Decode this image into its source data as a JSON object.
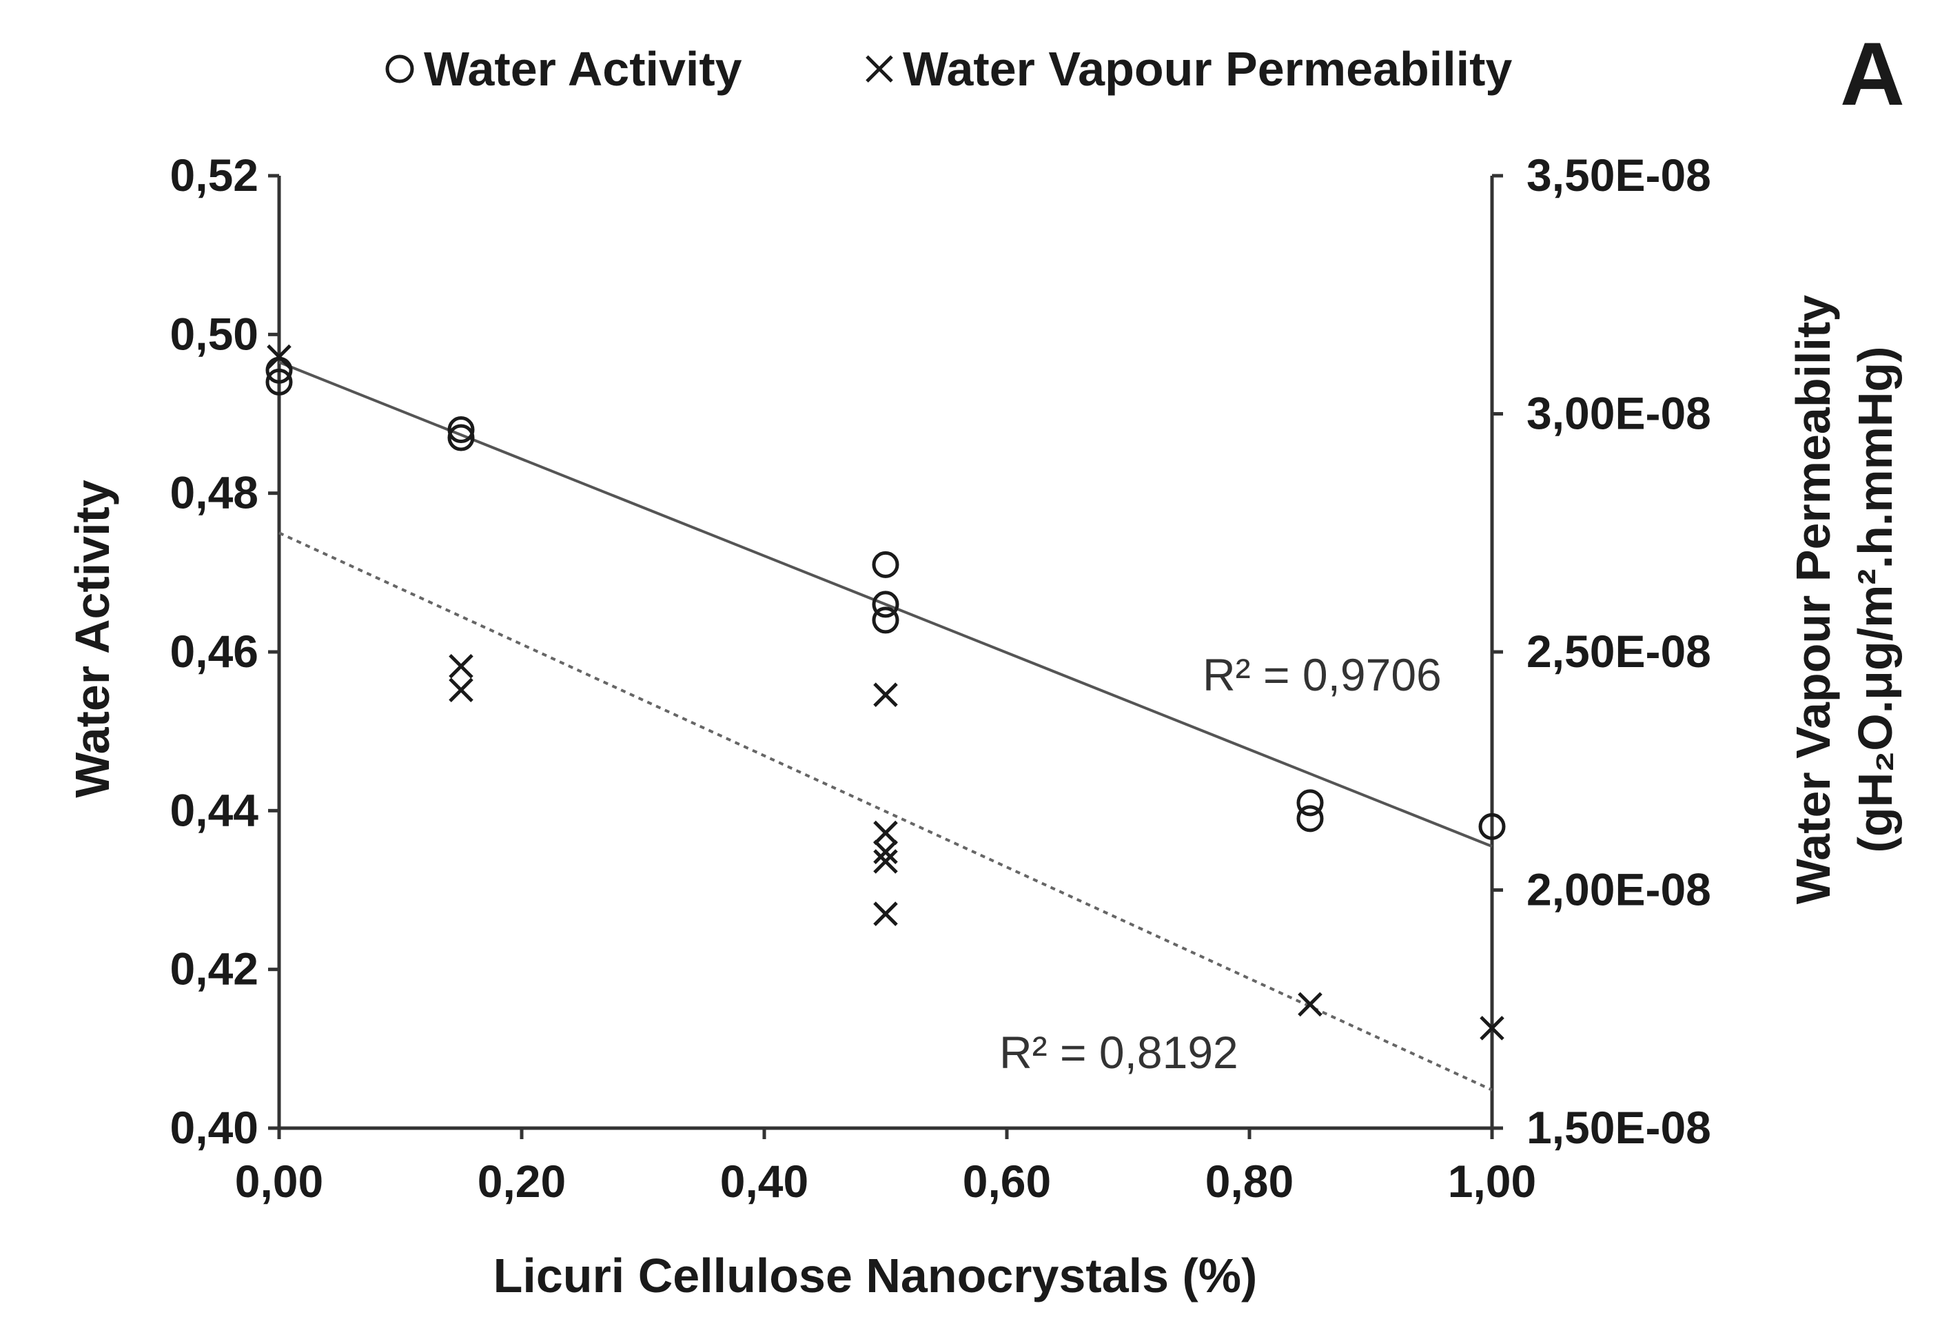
{
  "chart_data": {
    "type": "scatter",
    "panel_label": "A",
    "xlabel": "Licuri Cellulose Nanocrystals (%)",
    "ylabel_left": "Water Activity",
    "ylabel_right_line1": "Water Vapour Permeability",
    "ylabel_right_line2": "(gH₂O.μg/m².h.mmHg)",
    "xlim": [
      0,
      1
    ],
    "ylim_left": [
      0.4,
      0.52
    ],
    "ylim_right": [
      1.5e-08,
      3.5e-08
    ],
    "x_ticks": [
      0,
      0.2,
      0.4,
      0.6,
      0.8,
      1.0
    ],
    "x_tick_labels": [
      "0,00",
      "0,20",
      "0,40",
      "0,60",
      "0,80",
      "1,00"
    ],
    "y_left_ticks": [
      0.4,
      0.42,
      0.44,
      0.46,
      0.48,
      0.5,
      0.52
    ],
    "y_left_tick_labels": [
      "0,40",
      "0,42",
      "0,44",
      "0,46",
      "0,48",
      "0,50",
      "0,52"
    ],
    "y_right_ticks": [
      1.5e-08,
      2e-08,
      2.5e-08,
      3e-08,
      3.5e-08
    ],
    "y_right_tick_labels": [
      "1,50E-08",
      "2,00E-08",
      "2,50E-08",
      "3,00E-08",
      "3,50E-08"
    ],
    "legend_position": "top",
    "grid": false,
    "series": [
      {
        "name": "Water Activity",
        "axis": "left",
        "marker": "circle",
        "points": [
          {
            "x": 0.0,
            "y": 0.4955
          },
          {
            "x": 0.0,
            "y": 0.494
          },
          {
            "x": 0.15,
            "y": 0.488
          },
          {
            "x": 0.15,
            "y": 0.487
          },
          {
            "x": 0.5,
            "y": 0.471
          },
          {
            "x": 0.5,
            "y": 0.466
          },
          {
            "x": 0.5,
            "y": 0.464
          },
          {
            "x": 0.85,
            "y": 0.441
          },
          {
            "x": 0.85,
            "y": 0.439
          },
          {
            "x": 1.0,
            "y": 0.438
          }
        ],
        "trendline": {
          "x": [
            0,
            1
          ],
          "y": [
            0.4965,
            0.4355
          ],
          "style": "solid",
          "r2_label": "R² = 0,9706"
        }
      },
      {
        "name": "Water Vapour Permeability",
        "axis": "right",
        "marker": "cross",
        "points": [
          {
            "x": 0.0,
            "y": 3.12e-08
          },
          {
            "x": 0.15,
            "y": 2.47e-08
          },
          {
            "x": 0.15,
            "y": 2.42e-08
          },
          {
            "x": 0.5,
            "y": 2.41e-08
          },
          {
            "x": 0.5,
            "y": 2.12e-08
          },
          {
            "x": 0.5,
            "y": 2.08e-08
          },
          {
            "x": 0.5,
            "y": 2.06e-08
          },
          {
            "x": 0.5,
            "y": 1.95e-08
          },
          {
            "x": 0.85,
            "y": 1.76e-08
          },
          {
            "x": 1.0,
            "y": 1.71e-08
          }
        ],
        "trendline": {
          "x": [
            0,
            1
          ],
          "y": [
            2.75e-08,
            1.58e-08
          ],
          "style": "dotted",
          "r2_label": "R² = 0,8192"
        }
      }
    ],
    "colors": {
      "marker": "#1a1a1a",
      "trend_solid": "#555555",
      "trend_dotted": "#666666",
      "axis": "#333333"
    }
  }
}
